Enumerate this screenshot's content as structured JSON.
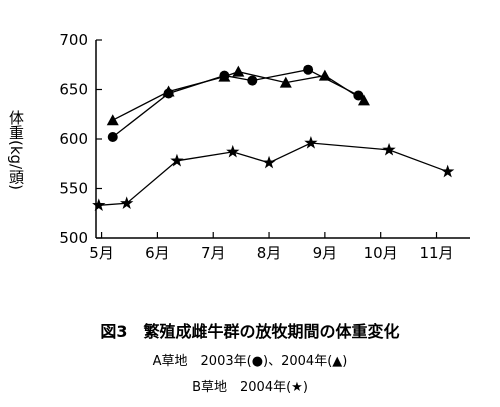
{
  "chart_data": {
    "type": "line",
    "ylabel": "体重(kg/頭)",
    "ylim": [
      500,
      700
    ],
    "yticks": [
      500,
      550,
      600,
      650,
      700
    ],
    "xlim": [
      4.9,
      11.6
    ],
    "xticks": [
      {
        "label": "5月",
        "value": 5
      },
      {
        "label": "6月",
        "value": 6
      },
      {
        "label": "7月",
        "value": 7
      },
      {
        "label": "8月",
        "value": 8
      },
      {
        "label": "9月",
        "value": 9
      },
      {
        "label": "10月",
        "value": 10
      },
      {
        "label": "11月",
        "value": 11
      }
    ],
    "grid": false,
    "legend": "none",
    "series": [
      {
        "marker": "circle",
        "color": "#000000",
        "points": [
          {
            "x": 5.2,
            "y": 602
          },
          {
            "x": 6.2,
            "y": 646
          },
          {
            "x": 7.2,
            "y": 664
          },
          {
            "x": 7.7,
            "y": 659
          },
          {
            "x": 8.7,
            "y": 670
          },
          {
            "x": 9.6,
            "y": 644
          }
        ]
      },
      {
        "marker": "triangle",
        "color": "#000000",
        "points": [
          {
            "x": 5.2,
            "y": 619
          },
          {
            "x": 6.2,
            "y": 648
          },
          {
            "x": 7.2,
            "y": 663
          },
          {
            "x": 7.45,
            "y": 668
          },
          {
            "x": 8.3,
            "y": 657
          },
          {
            "x": 9.0,
            "y": 664
          },
          {
            "x": 9.7,
            "y": 639
          }
        ]
      },
      {
        "marker": "star",
        "color": "#000000",
        "points": [
          {
            "x": 4.95,
            "y": 533
          },
          {
            "x": 5.45,
            "y": 535
          },
          {
            "x": 6.35,
            "y": 578
          },
          {
            "x": 7.35,
            "y": 587
          },
          {
            "x": 8.0,
            "y": 576
          },
          {
            "x": 8.75,
            "y": 596
          },
          {
            "x": 10.15,
            "y": 589
          },
          {
            "x": 11.2,
            "y": 567
          }
        ]
      }
    ]
  },
  "figure": {
    "title": "図3　繁殖成雌牛群の放牧期間の体重変化",
    "note_a": "A草地　2003年(●)、2004年(▲)",
    "note_b": "B草地　2004年(★)"
  }
}
